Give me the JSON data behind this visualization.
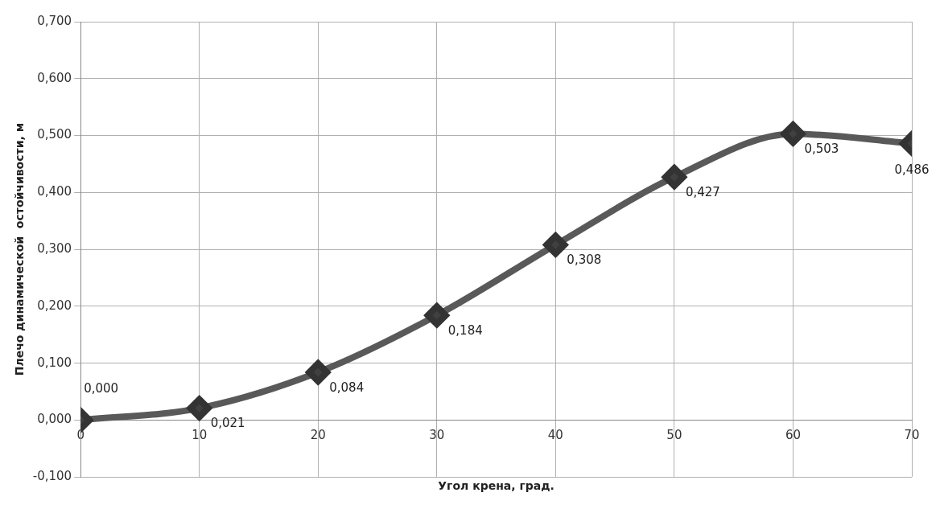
{
  "chart_data": {
    "type": "line",
    "xlabel": "Угол крена, град.",
    "ylabel": "Плечо динамической  остойчивости, м",
    "x": [
      0,
      10,
      20,
      30,
      40,
      50,
      60,
      70
    ],
    "series": [
      {
        "color": "#595959",
        "values": [
          0,
          0.021,
          0.084,
          0.184,
          0.308,
          0.427,
          0.503,
          0.486
        ],
        "value_labels": [
          "0,000",
          "0,021",
          "0,084",
          "0,184",
          "0,308",
          "0,427",
          "0,503",
          "0,486"
        ]
      }
    ],
    "xlim": [
      0,
      70
    ],
    "xticks": [
      0,
      10,
      20,
      30,
      40,
      50,
      60,
      70
    ],
    "ylim": [
      -0.1,
      0.7
    ],
    "yticks": [
      {
        "value": -0.1,
        "label": "-0,100"
      },
      {
        "value": 0,
        "label": "0,000"
      },
      {
        "value": 0.1,
        "label": "0,100"
      },
      {
        "value": 0.2,
        "label": "0,200"
      },
      {
        "value": 0.3,
        "label": "0,300"
      },
      {
        "value": 0.4,
        "label": "0,400"
      },
      {
        "value": 0.5,
        "label": "0,500"
      },
      {
        "value": 0.6,
        "label": "0,600"
      },
      {
        "value": 0.7,
        "label": "0,700"
      }
    ],
    "grid": true,
    "legend": false,
    "marker": "diamond",
    "line_style": "solid"
  }
}
